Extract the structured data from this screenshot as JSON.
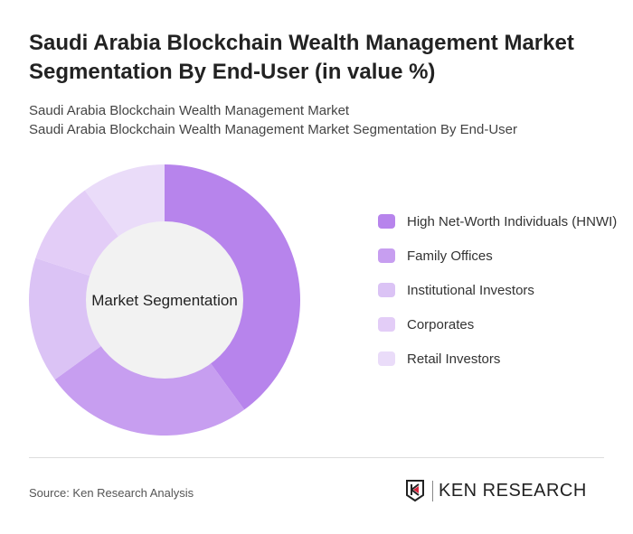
{
  "title": "Saudi Arabia Blockchain Wealth Management Market Segmentation By End-User (in value %)",
  "subtitle1": "Saudi Arabia Blockchain Wealth Management Market",
  "subtitle2": "Saudi Arabia Blockchain Wealth Management Market Segmentation By End-User",
  "source": "Source: Ken Research Analysis",
  "logo": "KEN RESEARCH",
  "chart_data": {
    "type": "pie",
    "variant": "donut",
    "center_label": "Market Segmentation",
    "legend_position": "right",
    "categories": [
      "High Net-Worth Individuals (HNWI)",
      "Family Offices",
      "Institutional Investors",
      "Corporates",
      "Retail Investors"
    ],
    "values": [
      40,
      25,
      15,
      10,
      10
    ],
    "colors": [
      "#b784ec",
      "#c79ef0",
      "#dbc3f5",
      "#e3cdf7",
      "#eadcf9"
    ]
  }
}
